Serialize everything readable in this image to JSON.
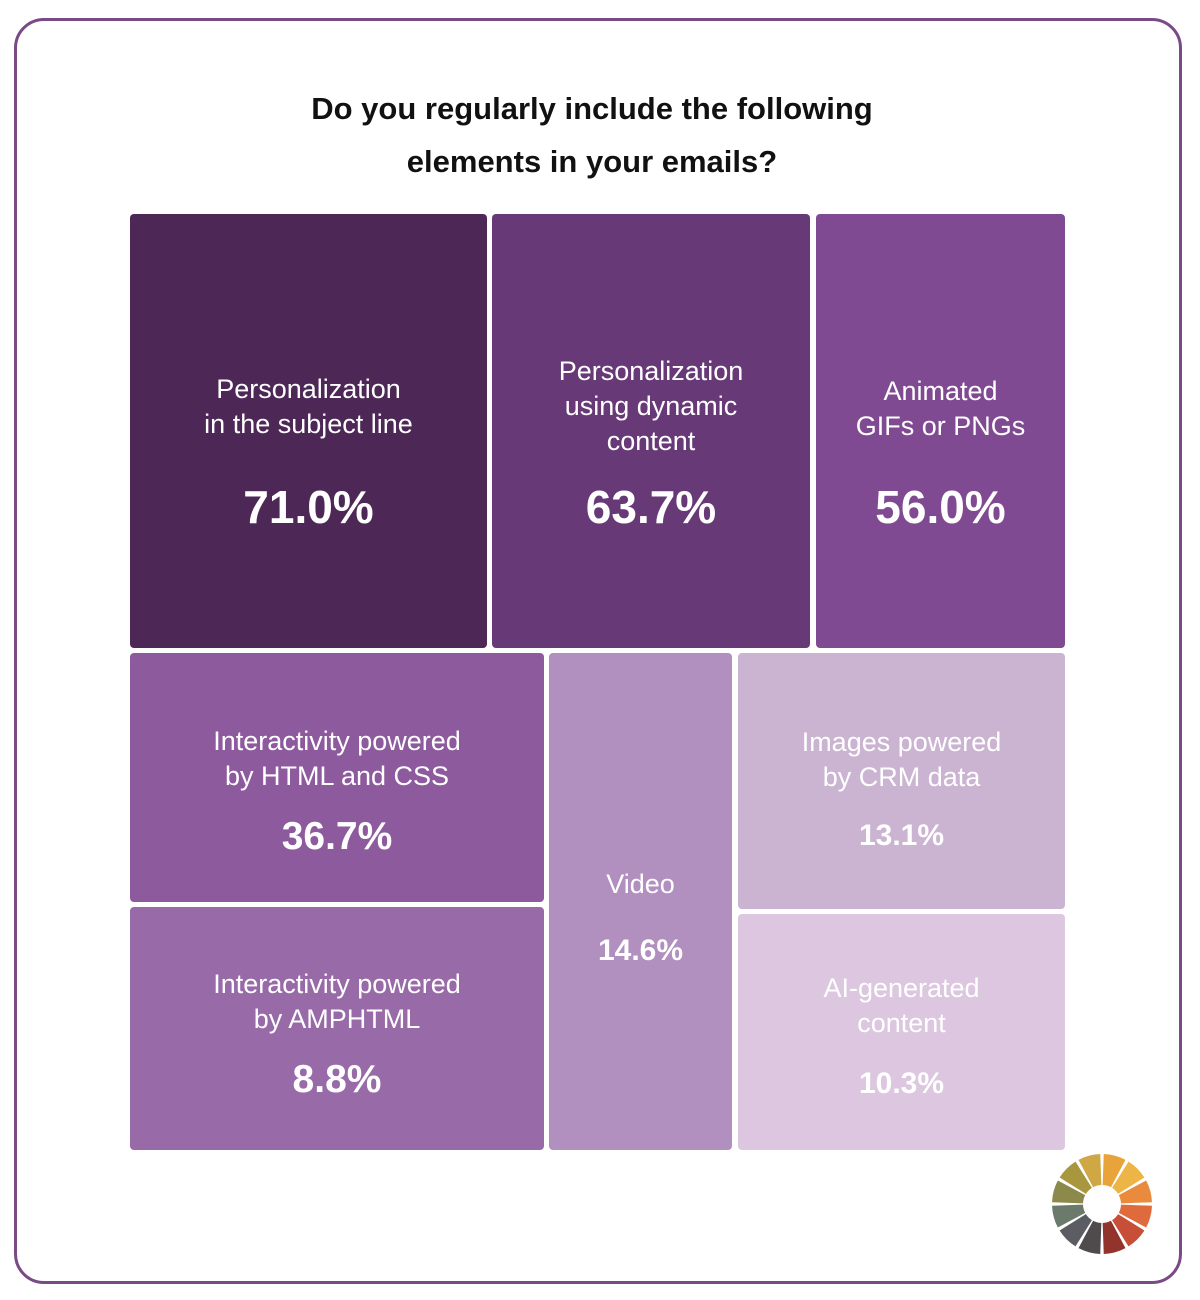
{
  "title_lines": [
    "Do you regularly include the following",
    "elements in your emails?"
  ],
  "chart_data": {
    "type": "treemap",
    "title": "Do you regularly include the following elements in your emails?",
    "unit": "%",
    "items": [
      {
        "label": "Personalization\nin the subject line",
        "value": 71.0,
        "display": "71.0%",
        "color": "#4d2856"
      },
      {
        "label": "Personalization\nusing dynamic\ncontent",
        "value": 63.7,
        "display": "63.7%",
        "color": "#673977"
      },
      {
        "label": "Animated\nGIFs or PNGs",
        "value": 56.0,
        "display": "56.0%",
        "color": "#804a92"
      },
      {
        "label": "Interactivity powered\nby HTML and CSS",
        "value": 36.7,
        "display": "36.7%",
        "color": "#8d5a9e"
      },
      {
        "label": "Interactivity powered\nby AMPHTML",
        "value": 8.8,
        "display": "8.8%",
        "color": "#986ba8"
      },
      {
        "label": "Video",
        "value": 14.6,
        "display": "14.6%",
        "color": "#b190bf"
      },
      {
        "label": "Images powered\nby CRM data",
        "value": 13.1,
        "display": "13.1%",
        "color": "#cbb4d2"
      },
      {
        "label": "AI-generated\ncontent",
        "value": 10.3,
        "display": "10.3%",
        "color": "#dcc6e0"
      }
    ]
  },
  "logo_colors": [
    "#e8a33a",
    "#edb546",
    "#e98a3d",
    "#df6a3b",
    "#c84f37",
    "#92332c",
    "#4f4a4b",
    "#5c5d62",
    "#6c7a6b",
    "#8b8a4a",
    "#a8973f",
    "#cfa845"
  ]
}
